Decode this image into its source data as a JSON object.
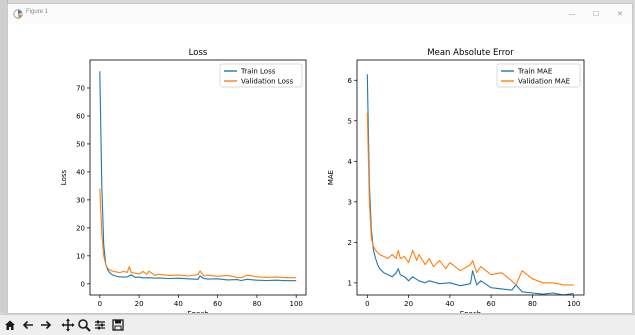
{
  "window": {
    "title": "Figure 1",
    "controls": {
      "minimize": "—",
      "maximize": "☐",
      "close": "✕"
    }
  },
  "toolbar": {
    "buttons": [
      {
        "name": "home-icon"
      },
      {
        "name": "back-icon"
      },
      {
        "name": "forward-icon"
      },
      {
        "name": "pan-icon"
      },
      {
        "name": "zoom-icon"
      },
      {
        "name": "subplots-icon"
      },
      {
        "name": "save-icon"
      }
    ]
  },
  "colors": {
    "train": "#1f77b4",
    "validation": "#ff7f0e"
  },
  "chart_data": [
    {
      "type": "line",
      "title": "Loss",
      "xlabel": "Epoch",
      "ylabel": "Loss",
      "xlim": [
        -5,
        105
      ],
      "ylim": [
        -4,
        80
      ],
      "xticks": [
        0,
        20,
        40,
        60,
        80,
        100
      ],
      "yticks": [
        0,
        10,
        20,
        30,
        40,
        50,
        60,
        70
      ],
      "legend": "upper right",
      "grid": false,
      "series": [
        {
          "name": "Train Loss",
          "color": "#1f77b4",
          "x": [
            0,
            1,
            2,
            3,
            4,
            5,
            6,
            7,
            8,
            9,
            10,
            12,
            14,
            16,
            18,
            20,
            22,
            25,
            28,
            30,
            35,
            40,
            45,
            50,
            51,
            53,
            55,
            60,
            65,
            70,
            72,
            75,
            80,
            85,
            90,
            95,
            100
          ],
          "y": [
            76,
            35,
            14,
            7,
            5,
            4,
            3.4,
            3,
            2.8,
            2.6,
            2.5,
            2.4,
            2.5,
            3.2,
            2.3,
            2.4,
            2.1,
            2.2,
            2,
            2.1,
            1.9,
            2,
            1.8,
            1.6,
            2.8,
            1.9,
            1.7,
            1.8,
            1.4,
            1.5,
            1.2,
            1.6,
            1.3,
            1.2,
            1.3,
            1.1,
            1.1
          ]
        },
        {
          "name": "Validation Loss",
          "color": "#ff7f0e",
          "x": [
            0,
            1,
            2,
            3,
            4,
            5,
            6,
            8,
            10,
            12,
            14,
            15,
            16,
            18,
            20,
            22,
            24,
            25,
            28,
            30,
            35,
            40,
            45,
            50,
            51,
            53,
            55,
            60,
            65,
            70,
            72,
            75,
            80,
            85,
            90,
            95,
            100
          ],
          "y": [
            34,
            18,
            10,
            7,
            5.5,
            5,
            4.6,
            4.3,
            4,
            4.4,
            4.1,
            6.2,
            4,
            3.8,
            3.5,
            4.4,
            3.4,
            4.5,
            3,
            3.4,
            3,
            3.1,
            2.8,
            3.3,
            4.6,
            2.8,
            3.1,
            2.7,
            3,
            2.3,
            2.2,
            3.1,
            2.5,
            2.3,
            2.4,
            2.2,
            2.2
          ]
        }
      ]
    },
    {
      "type": "line",
      "title": "Mean Absolute Error",
      "xlabel": "Epoch",
      "ylabel": "MAE",
      "xlim": [
        -5,
        105
      ],
      "ylim": [
        0.7,
        6.5
      ],
      "xticks": [
        0,
        20,
        40,
        60,
        80,
        100
      ],
      "yticks": [
        1,
        2,
        3,
        4,
        5,
        6
      ],
      "legend": "upper right",
      "grid": false,
      "series": [
        {
          "name": "Train MAE",
          "color": "#1f77b4",
          "x": [
            0,
            1,
            2,
            3,
            4,
            5,
            6,
            8,
            10,
            12,
            14,
            15,
            16,
            18,
            20,
            22,
            25,
            28,
            30,
            35,
            40,
            45,
            50,
            51,
            53,
            55,
            60,
            65,
            70,
            72,
            75,
            80,
            85,
            90,
            95,
            100
          ],
          "y": [
            6.15,
            3.4,
            2.3,
            1.8,
            1.6,
            1.45,
            1.35,
            1.25,
            1.2,
            1.15,
            1.25,
            1.35,
            1.2,
            1.15,
            1.05,
            1.15,
            1.05,
            1.0,
            1.05,
            0.98,
            1.0,
            0.93,
            0.98,
            1.3,
            0.95,
            1.05,
            0.88,
            0.85,
            0.82,
            0.95,
            0.78,
            0.75,
            0.72,
            0.75,
            0.7,
            0.74
          ]
        },
        {
          "name": "Validation MAE",
          "color": "#ff7f0e",
          "x": [
            0,
            1,
            2,
            3,
            4,
            5,
            6,
            8,
            10,
            12,
            14,
            15,
            16,
            18,
            20,
            22,
            24,
            25,
            28,
            30,
            32,
            35,
            38,
            40,
            45,
            50,
            51,
            53,
            55,
            60,
            65,
            70,
            72,
            75,
            80,
            85,
            90,
            95,
            100
          ],
          "y": [
            5.2,
            3.0,
            2.1,
            1.9,
            1.8,
            1.75,
            1.7,
            1.65,
            1.6,
            1.7,
            1.6,
            1.8,
            1.6,
            1.65,
            1.5,
            1.8,
            1.55,
            1.7,
            1.45,
            1.6,
            1.4,
            1.55,
            1.35,
            1.5,
            1.3,
            1.45,
            1.55,
            1.25,
            1.4,
            1.2,
            1.25,
            1.05,
            0.95,
            1.3,
            1.1,
            1.0,
            1.0,
            0.95,
            0.95
          ]
        }
      ]
    }
  ]
}
